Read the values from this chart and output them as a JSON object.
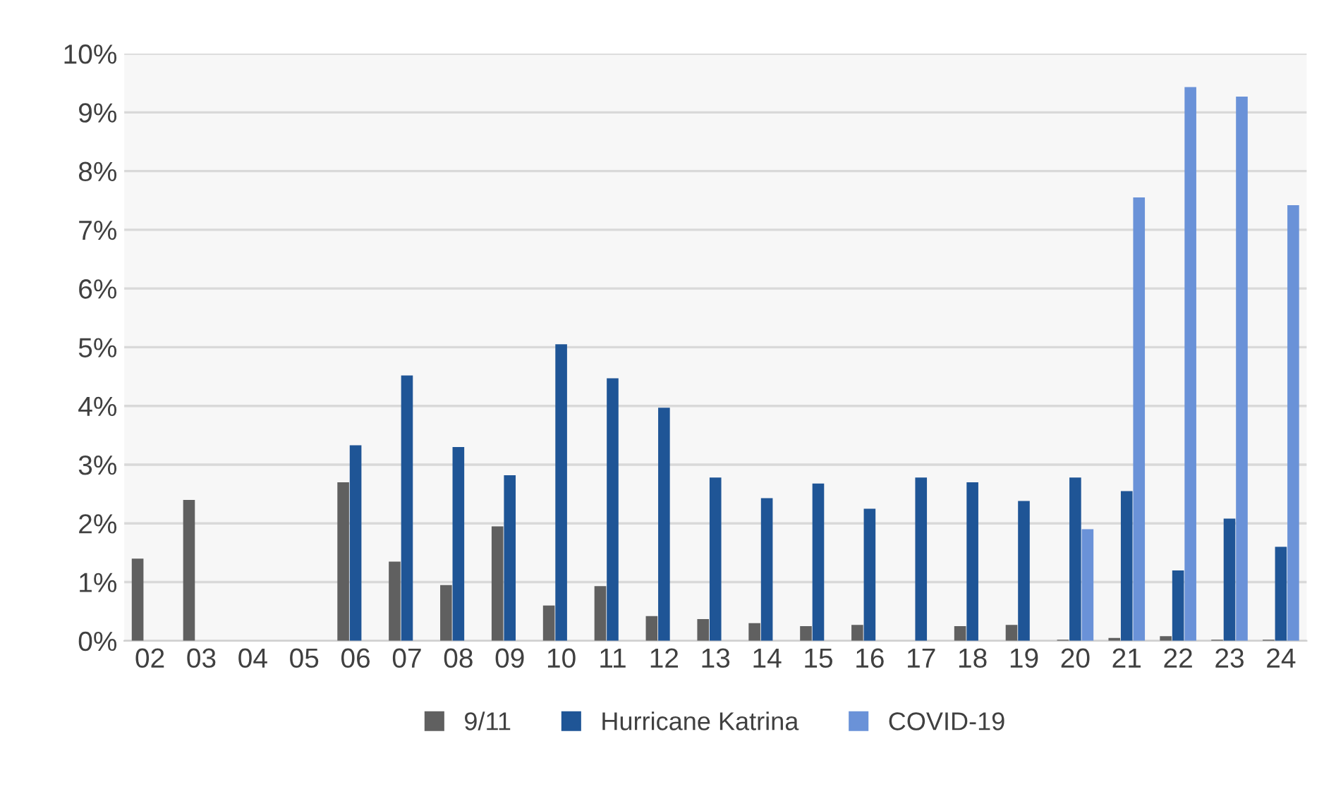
{
  "chart_data": {
    "type": "bar",
    "categories": [
      "02",
      "03",
      "04",
      "05",
      "06",
      "07",
      "08",
      "09",
      "10",
      "11",
      "12",
      "13",
      "14",
      "15",
      "16",
      "17",
      "18",
      "19",
      "20",
      "21",
      "22",
      "23",
      "24"
    ],
    "series": [
      {
        "name": "9/11",
        "color": "#606060",
        "values": [
          1.4,
          2.4,
          null,
          null,
          2.7,
          1.35,
          0.95,
          1.95,
          0.6,
          0.93,
          0.42,
          0.37,
          0.3,
          0.25,
          0.27,
          null,
          0.25,
          0.27,
          0.02,
          0.05,
          0.08,
          0.02,
          0.02
        ]
      },
      {
        "name": "Hurricane Katrina",
        "color": "#1f5596",
        "values": [
          null,
          null,
          null,
          null,
          3.33,
          4.52,
          3.3,
          2.82,
          5.05,
          4.47,
          3.97,
          2.78,
          2.43,
          2.68,
          2.25,
          2.78,
          2.7,
          2.38,
          2.78,
          2.55,
          1.2,
          2.08,
          1.6
        ]
      },
      {
        "name": "COVID-19",
        "color": "#6a92d8",
        "values": [
          null,
          null,
          null,
          null,
          null,
          null,
          null,
          null,
          null,
          null,
          null,
          null,
          null,
          null,
          null,
          null,
          null,
          null,
          1.9,
          7.55,
          9.43,
          9.27,
          7.42
        ]
      }
    ],
    "ylim": [
      0,
      10
    ],
    "yticks": [
      {
        "value": 0,
        "label": "0%"
      },
      {
        "value": 1,
        "label": "1%"
      },
      {
        "value": 2,
        "label": "2%"
      },
      {
        "value": 3,
        "label": "3%"
      },
      {
        "value": 4,
        "label": "4%"
      },
      {
        "value": 5,
        "label": "5%"
      },
      {
        "value": 6,
        "label": "6%"
      },
      {
        "value": 7,
        "label": "7%"
      },
      {
        "value": 8,
        "label": "8%"
      },
      {
        "value": 9,
        "label": "9%"
      },
      {
        "value": 10,
        "label": "10%"
      }
    ],
    "grid": "y",
    "legend": "bottom"
  }
}
